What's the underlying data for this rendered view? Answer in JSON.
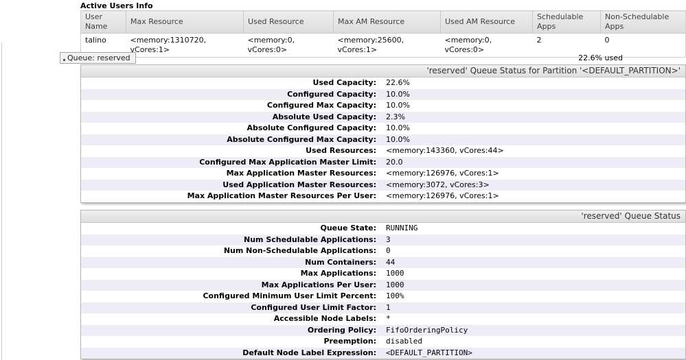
{
  "active_users": {
    "title": "Active Users Info",
    "columns": [
      "User Name",
      "Max Resource",
      "Used Resource",
      "Max AM Resource",
      "Used AM Resource",
      "Schedulable Apps",
      "Non-Schedulable Apps"
    ],
    "rows": [
      [
        "talino",
        "<memory:1310720, vCores:1>",
        "<memory:0, vCores:0>",
        "<memory:25600, vCores:1>",
        "<memory:0, vCores:0>",
        "2",
        "0"
      ]
    ]
  },
  "queue_bar": {
    "tab_label": "Queue: reserved",
    "used_label": "22.6% used"
  },
  "sections": [
    {
      "title": "'reserved' Queue Status for Partition '<DEFAULT_PARTITION>'",
      "rows": [
        [
          "Used Capacity:",
          "22.6%"
        ],
        [
          "Configured Capacity:",
          "10.0%"
        ],
        [
          "Configured Max Capacity:",
          "10.0%"
        ],
        [
          "Absolute Used Capacity:",
          "2.3%"
        ],
        [
          "Absolute Configured Capacity:",
          "10.0%"
        ],
        [
          "Absolute Configured Max Capacity:",
          "10.0%"
        ],
        [
          "Used Resources:",
          "<memory:143360, vCores:44>"
        ],
        [
          "Configured Max Application Master Limit:",
          "20.0"
        ],
        [
          "Max Application Master Resources:",
          "<memory:126976, vCores:1>"
        ],
        [
          "Used Application Master Resources:",
          "<memory:3072, vCores:3>"
        ],
        [
          "Max Application Master Resources Per User:",
          "<memory:126976, vCores:1>"
        ]
      ]
    },
    {
      "title": "'reserved' Queue Status",
      "rows": [
        [
          "Queue State:",
          "RUNNING"
        ],
        [
          "Num Schedulable Applications:",
          "3"
        ],
        [
          "Num Non-Schedulable Applications:",
          "0"
        ],
        [
          "Num Containers:",
          "44"
        ],
        [
          "Max Applications:",
          "1000"
        ],
        [
          "Max Applications Per User:",
          "1000"
        ],
        [
          "Configured Minimum User Limit Percent:",
          "100%"
        ],
        [
          "Configured User Limit Factor:",
          "1"
        ],
        [
          "Accessible Node Labels:",
          "*"
        ],
        [
          "Ordering Policy:",
          "FifoOrderingPolicy"
        ],
        [
          "Preemption:",
          "disabled"
        ],
        [
          "Default Node Label Expression:",
          "<DEFAULT_PARTITION>"
        ]
      ]
    }
  ],
  "colors": {
    "row_alt": "#ededf8",
    "header_gradient_top": "#f1f1f1",
    "header_gradient_bottom": "#dddddd",
    "panel_border": "#b4b4b4"
  }
}
